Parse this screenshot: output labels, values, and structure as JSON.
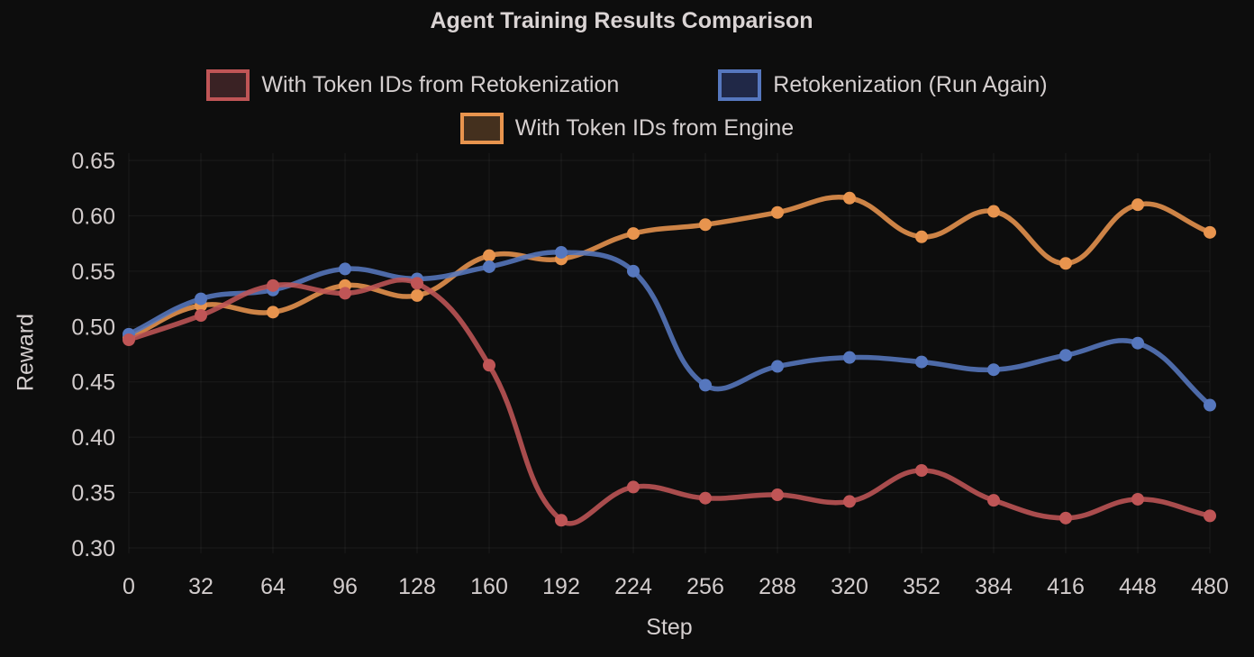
{
  "title": "Agent Training Results Comparison",
  "colors": {
    "background": "#0D0D0D",
    "text": "#D5CFCF",
    "grid": "rgba(255,255,255,0.06)"
  },
  "chart_data": {
    "type": "line",
    "title": "Agent Training Results Comparison",
    "xlabel": "Step",
    "ylabel": "Reward",
    "x": [
      0,
      32,
      64,
      96,
      128,
      160,
      192,
      224,
      256,
      288,
      320,
      352,
      384,
      416,
      448,
      480
    ],
    "ylim": [
      0.3,
      0.65
    ],
    "yticks": [
      0.3,
      0.35,
      0.4,
      0.45,
      0.5,
      0.55,
      0.6,
      0.65
    ],
    "grid": true,
    "legend_position": "top",
    "legend_rows": [
      [
        0,
        1
      ],
      [
        2
      ]
    ],
    "series": [
      {
        "name": "With Token IDs from Retokenization",
        "color": "#BF5556",
        "legend_fill": "#3A2224",
        "values": [
          0.488,
          0.51,
          0.537,
          0.53,
          0.539,
          0.465,
          0.325,
          0.355,
          0.345,
          0.348,
          0.342,
          0.37,
          0.343,
          0.327,
          0.344,
          0.329
        ]
      },
      {
        "name": "Retokenization (Run Again)",
        "color": "#5677BE",
        "legend_fill": "#202847",
        "values": [
          0.493,
          0.525,
          0.533,
          0.552,
          0.543,
          0.554,
          0.567,
          0.55,
          0.447,
          0.464,
          0.472,
          0.468,
          0.461,
          0.474,
          0.485,
          0.429
        ]
      },
      {
        "name": "With Token IDs from Engine",
        "color": "#E8944E",
        "legend_fill": "#44301E",
        "values": [
          0.49,
          0.519,
          0.513,
          0.537,
          0.528,
          0.564,
          0.561,
          0.584,
          0.592,
          0.603,
          0.616,
          0.581,
          0.604,
          0.557,
          0.61,
          0.585
        ]
      }
    ]
  }
}
